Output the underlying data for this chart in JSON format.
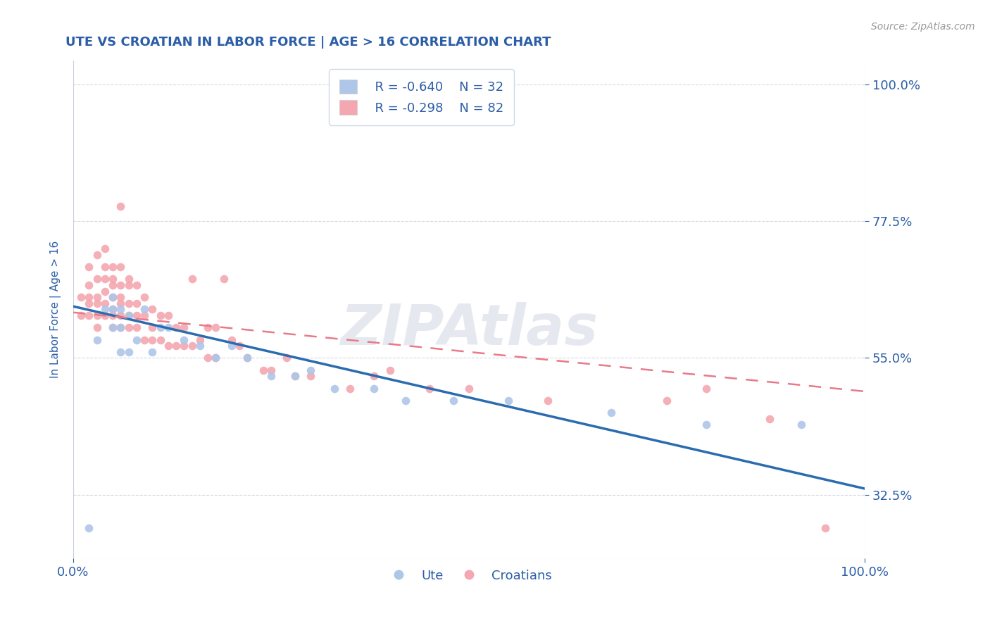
{
  "title": "UTE VS CROATIAN IN LABOR FORCE | AGE > 16 CORRELATION CHART",
  "source_text": "Source: ZipAtlas.com",
  "ylabel": "In Labor Force | Age > 16",
  "xmin": 0.0,
  "xmax": 1.0,
  "ymin": 0.22,
  "ymax": 1.04,
  "yticks": [
    0.325,
    0.55,
    0.775,
    1.0
  ],
  "ytick_labels": [
    "32.5%",
    "55.0%",
    "77.5%",
    "100.0%"
  ],
  "xtick_labels": [
    "0.0%",
    "100.0%"
  ],
  "xticks": [
    0.0,
    1.0
  ],
  "legend_r1": "R = -0.640",
  "legend_n1": "N = 32",
  "legend_r2": "R = -0.298",
  "legend_n2": "N = 82",
  "ute_color": "#aec6e8",
  "croatian_color": "#f4a7b0",
  "ute_line_color": "#2b6cb0",
  "croatian_line_color": "#e87a8a",
  "title_color": "#2b5ea7",
  "axis_label_color": "#2b5ea7",
  "tick_color": "#2b5ea7",
  "watermark": "ZIPAtlas",
  "background_color": "#ffffff",
  "ute_line_x0": 0.0,
  "ute_line_y0": 0.635,
  "ute_line_x1": 1.0,
  "ute_line_y1": 0.335,
  "cro_line_x0": 0.0,
  "cro_line_y0": 0.625,
  "cro_line_x1": 1.0,
  "cro_line_y1": 0.495,
  "ute_scatter_x": [
    0.02,
    0.03,
    0.04,
    0.05,
    0.05,
    0.05,
    0.06,
    0.06,
    0.06,
    0.07,
    0.07,
    0.08,
    0.09,
    0.1,
    0.11,
    0.12,
    0.14,
    0.16,
    0.18,
    0.2,
    0.22,
    0.25,
    0.28,
    0.3,
    0.33,
    0.38,
    0.42,
    0.48,
    0.55,
    0.68,
    0.8,
    0.92
  ],
  "ute_scatter_y": [
    0.27,
    0.58,
    0.63,
    0.6,
    0.63,
    0.65,
    0.56,
    0.6,
    0.63,
    0.56,
    0.62,
    0.58,
    0.63,
    0.56,
    0.6,
    0.6,
    0.58,
    0.57,
    0.55,
    0.57,
    0.55,
    0.52,
    0.52,
    0.53,
    0.5,
    0.5,
    0.48,
    0.48,
    0.48,
    0.46,
    0.44,
    0.44
  ],
  "croatian_scatter_x": [
    0.01,
    0.01,
    0.02,
    0.02,
    0.02,
    0.02,
    0.02,
    0.03,
    0.03,
    0.03,
    0.03,
    0.03,
    0.03,
    0.04,
    0.04,
    0.04,
    0.04,
    0.04,
    0.04,
    0.05,
    0.05,
    0.05,
    0.05,
    0.05,
    0.05,
    0.05,
    0.06,
    0.06,
    0.06,
    0.06,
    0.06,
    0.06,
    0.06,
    0.07,
    0.07,
    0.07,
    0.07,
    0.07,
    0.08,
    0.08,
    0.08,
    0.08,
    0.09,
    0.09,
    0.09,
    0.1,
    0.1,
    0.1,
    0.11,
    0.11,
    0.12,
    0.12,
    0.13,
    0.13,
    0.14,
    0.14,
    0.15,
    0.15,
    0.16,
    0.17,
    0.17,
    0.18,
    0.18,
    0.19,
    0.2,
    0.21,
    0.22,
    0.24,
    0.25,
    0.27,
    0.28,
    0.3,
    0.35,
    0.38,
    0.4,
    0.45,
    0.5,
    0.6,
    0.75,
    0.8,
    0.88,
    0.95
  ],
  "croatian_scatter_y": [
    0.62,
    0.65,
    0.62,
    0.64,
    0.65,
    0.67,
    0.7,
    0.6,
    0.62,
    0.64,
    0.65,
    0.68,
    0.72,
    0.62,
    0.64,
    0.66,
    0.68,
    0.7,
    0.73,
    0.6,
    0.62,
    0.63,
    0.65,
    0.67,
    0.68,
    0.7,
    0.6,
    0.62,
    0.64,
    0.65,
    0.67,
    0.7,
    0.8,
    0.6,
    0.62,
    0.64,
    0.67,
    0.68,
    0.6,
    0.62,
    0.64,
    0.67,
    0.58,
    0.62,
    0.65,
    0.58,
    0.6,
    0.63,
    0.58,
    0.62,
    0.57,
    0.62,
    0.57,
    0.6,
    0.57,
    0.6,
    0.57,
    0.68,
    0.58,
    0.55,
    0.6,
    0.55,
    0.6,
    0.68,
    0.58,
    0.57,
    0.55,
    0.53,
    0.53,
    0.55,
    0.52,
    0.52,
    0.5,
    0.52,
    0.53,
    0.5,
    0.5,
    0.48,
    0.48,
    0.5,
    0.45,
    0.27
  ]
}
